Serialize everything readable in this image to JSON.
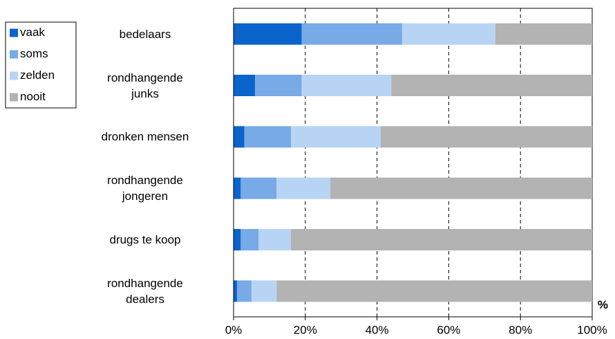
{
  "chart_data": {
    "type": "stacked_barh",
    "categories": [
      "bedelaars",
      "rondhangende\njunks",
      "dronken mensen",
      "rondhangende\njongeren",
      "drugs te koop",
      "rondhangende\ndealers"
    ],
    "series": [
      {
        "name": "vaak",
        "color": "#0a64cc",
        "values": [
          19,
          6,
          3,
          2,
          2,
          1
        ]
      },
      {
        "name": "soms",
        "color": "#77aae6",
        "values": [
          28,
          13,
          13,
          10,
          5,
          4
        ]
      },
      {
        "name": "zelden",
        "color": "#b8d4f4",
        "values": [
          26,
          25,
          25,
          15,
          9,
          7
        ]
      },
      {
        "name": "nooit",
        "color": "#b3b3b3",
        "values": [
          27,
          56,
          59,
          73,
          84,
          88
        ]
      }
    ],
    "x_label": "%",
    "xlim": [
      0,
      100
    ],
    "xticks": [
      {
        "value": 0,
        "label": "0%"
      },
      {
        "value": 20,
        "label": "20%"
      },
      {
        "value": 40,
        "label": "40%"
      },
      {
        "value": 60,
        "label": "60%"
      },
      {
        "value": 80,
        "label": "80%"
      },
      {
        "value": 100,
        "label": "100%"
      }
    ],
    "grid": true,
    "legend": "top-left"
  }
}
